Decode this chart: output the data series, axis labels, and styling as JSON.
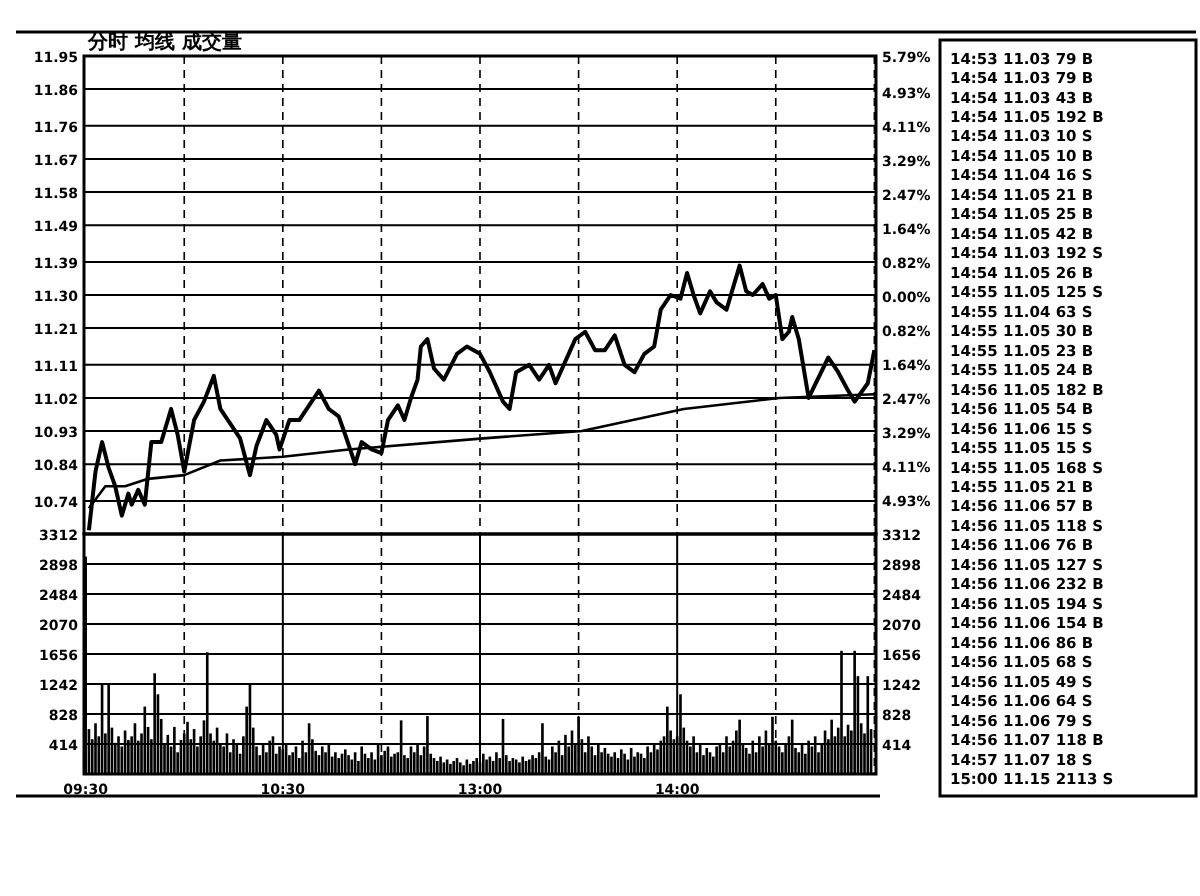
{
  "chart_data": [
    {
      "type": "line",
      "title": "分时 均线 成交量",
      "ylim": [
        10.65,
        11.95
      ],
      "y2lim": [
        -5.75,
        5.79
      ],
      "grid": true,
      "tick_labels": "y",
      "categories": [
        null,
        null,
        null,
        null,
        null,
        null,
        null,
        null,
        null,
        null,
        null,
        null,
        null,
        null,
        null,
        null,
        null,
        null,
        null,
        null,
        null,
        null,
        null,
        null,
        null,
        null,
        null,
        null,
        null,
        null,
        null,
        null,
        null,
        null,
        null,
        null,
        null,
        null,
        null,
        null,
        null,
        null,
        null,
        null,
        null,
        null,
        null,
        null,
        null,
        null,
        null,
        null,
        null,
        null,
        null,
        null,
        null,
        null,
        null,
        null,
        null,
        null,
        null,
        null,
        null,
        null,
        null,
        null,
        null,
        null,
        null,
        null,
        null,
        null,
        null,
        null,
        null,
        null,
        null,
        null,
        null,
        null,
        null,
        null,
        null,
        null,
        null,
        null,
        null,
        null,
        null,
        null,
        null,
        null,
        null,
        null,
        null,
        null,
        null,
        null,
        null,
        null,
        null,
        null,
        null,
        null,
        null,
        null,
        null,
        null,
        null,
        null,
        null,
        null,
        null,
        null,
        null,
        null,
        null,
        null,
        null,
        null,
        null,
        null,
        null,
        null,
        null,
        null,
        null,
        null,
        null,
        null,
        null,
        null,
        null,
        null,
        null,
        null,
        null,
        null,
        null,
        null,
        null,
        null,
        null,
        null,
        null,
        null,
        null,
        null,
        null,
        null,
        null,
        null,
        null,
        null,
        null,
        null,
        null,
        null,
        null,
        null,
        null,
        null,
        null,
        null,
        null,
        null,
        null,
        null,
        null,
        null,
        null,
        null,
        null,
        null,
        null,
        null,
        null,
        null,
        null,
        null,
        null,
        null,
        null,
        null,
        null,
        null,
        null,
        null,
        null,
        null,
        null,
        null,
        null,
        null,
        null,
        null,
        null,
        null,
        null,
        null,
        null,
        null,
        null,
        null,
        null,
        null,
        null,
        null,
        null,
        null,
        null,
        null,
        null,
        null,
        null,
        null,
        null,
        null,
        null,
        null,
        null,
        null,
        null,
        null,
        null,
        null,
        null,
        null,
        null,
        null,
        null,
        null,
        null,
        null,
        null,
        null,
        null,
        null,
        null
      ],
      "yticks": [
        11.95,
        11.86,
        11.76,
        11.67,
        11.58,
        11.49,
        11.39,
        {
          "value": 11.3,
          "label": "11.30"
        },
        11.21,
        11.11,
        11.02,
        10.93,
        10.84,
        10.74
      ],
      "y2ticks": [
        {
          "value": 5.79,
          "label": "5.79%"
        },
        {
          "value": 4.93,
          "label": "4.93%"
        },
        {
          "value": 4.11,
          "label": "4.11%"
        },
        {
          "value": 3.29,
          "label": "3.29%"
        },
        {
          "value": 2.47,
          "label": "2.47%"
        },
        {
          "value": 1.64,
          "label": "1.64%"
        },
        {
          "value": 0.82,
          "label": "0.82%"
        },
        {
          "value": 0,
          "label": "0.00%"
        },
        {
          "value": -0.82,
          "label": "0.82%"
        },
        {
          "value": -1.64,
          "label": "1.64%"
        },
        {
          "value": -2.47,
          "label": "2.47%"
        },
        {
          "value": -3.29,
          "label": "3.29%"
        },
        {
          "value": -4.11,
          "label": "4.11%"
        },
        {
          "value": -4.93,
          "label": "4.93%"
        }
      ],
      "series": [
        {
          "color": "#000000",
          "values": [
            null,
            10.66,
            null,
            10.82,
            null,
            10.9,
            null,
            10.83,
            null,
            10.78,
            null,
            10.7,
            null,
            10.76,
            10.73,
            null,
            10.77,
            null,
            10.73,
            null,
            10.9,
            null,
            null,
            10.9,
            null,
            null,
            10.99,
            null,
            10.92,
            null,
            10.82,
            null,
            null,
            10.96,
            null,
            null,
            11.01,
            null,
            null,
            11.08,
            null,
            10.99,
            null,
            null,
            10.95,
            null,
            null,
            10.91,
            null,
            null,
            10.81,
            null,
            10.89,
            null,
            null,
            10.96,
            null,
            null,
            10.92,
            10.88,
            null,
            null,
            10.96,
            null,
            null,
            10.96,
            null,
            null,
            11.0,
            null,
            null,
            11.04,
            null,
            null,
            10.99,
            null,
            null,
            10.97,
            null,
            10.92,
            null,
            null,
            10.84,
            null,
            10.9,
            null,
            null,
            10.88,
            null,
            null,
            10.87,
            null,
            10.96,
            null,
            null,
            11.0,
            null,
            10.96,
            null,
            11.02,
            null,
            11.07,
            11.16,
            null,
            11.18,
            null,
            11.1,
            null,
            null,
            11.07,
            null,
            null,
            null,
            11.14,
            null,
            null,
            11.16,
            null,
            null,
            null,
            11.14,
            null,
            null,
            11.09,
            null,
            null,
            null,
            11.01,
            null,
            10.99,
            null,
            11.09,
            null,
            null,
            null,
            11.11,
            null,
            null,
            11.07,
            null,
            null,
            11.11,
            null,
            11.06,
            null,
            null,
            11.12,
            null,
            null,
            11.18,
            null,
            null,
            11.2,
            null,
            null,
            11.15,
            null,
            null,
            11.15,
            null,
            null,
            11.19,
            null,
            null,
            11.11,
            null,
            null,
            11.09,
            null,
            null,
            11.14,
            null,
            null,
            11.16,
            null,
            11.26,
            null,
            null,
            11.3,
            null,
            null,
            11.29,
            null,
            11.36,
            null,
            11.3,
            null,
            11.25,
            null,
            null,
            11.31,
            null,
            11.28,
            null,
            null,
            11.26,
            null,
            null,
            null,
            11.38,
            null,
            11.31,
            null,
            11.3,
            null,
            null,
            11.33,
            null,
            11.29,
            null,
            11.3,
            null,
            11.18,
            null,
            11.2,
            11.24,
            null,
            11.18,
            null,
            null,
            11.02,
            null,
            null,
            null,
            null,
            null,
            11.13,
            null,
            null,
            11.09,
            null,
            null,
            11.04,
            null,
            11.01,
            null,
            null,
            null,
            11.06,
            null,
            11.15
          ]
        },
        {
          "color": "#000000",
          "values": [
            null,
            10.72,
            null,
            null,
            null,
            null,
            10.78,
            null,
            null,
            null,
            null,
            null,
            10.78,
            null,
            null,
            null,
            null,
            null,
            null,
            10.8,
            null,
            null,
            null,
            null,
            null,
            null,
            null,
            null,
            null,
            null,
            10.81,
            null,
            null,
            null,
            null,
            null,
            null,
            null,
            null,
            null,
            null,
            10.85,
            null,
            null,
            null,
            null,
            null,
            null,
            null,
            null,
            null,
            null,
            null,
            null,
            null,
            null,
            null,
            null,
            null,
            null,
            10.86,
            null,
            null,
            null,
            null,
            null,
            null,
            null,
            null,
            null,
            null,
            null,
            null,
            null,
            null,
            null,
            null,
            null,
            null,
            null,
            10.88,
            null,
            null,
            null,
            null,
            null,
            null,
            null,
            null,
            null,
            null,
            null,
            null,
            null,
            null,
            null,
            null,
            null,
            null,
            null,
            null,
            null,
            null,
            null,
            null,
            null,
            null,
            null,
            null,
            null,
            null,
            null,
            null,
            null,
            null,
            null,
            null,
            null,
            null,
            null,
            null,
            10.91,
            null,
            null,
            null,
            null,
            null,
            null,
            null,
            null,
            null,
            null,
            null,
            null,
            null,
            null,
            null,
            null,
            null,
            null,
            null,
            null,
            null,
            null,
            null,
            null,
            null,
            null,
            null,
            null,
            null,
            10.93,
            null,
            null,
            null,
            null,
            null,
            null,
            null,
            null,
            null,
            null,
            null,
            null,
            null,
            null,
            null,
            null,
            null,
            null,
            null,
            null,
            null,
            null,
            null,
            null,
            null,
            null,
            null,
            null,
            null,
            null,
            10.99,
            null,
            null,
            null,
            null,
            null,
            null,
            null,
            null,
            null,
            null,
            null,
            null,
            null,
            null,
            null,
            null,
            null,
            null,
            null,
            null,
            null,
            null,
            null,
            null,
            null,
            null,
            null,
            null,
            11.02,
            null,
            null,
            null,
            null,
            null,
            null,
            null,
            null,
            null,
            null,
            null,
            null,
            null,
            null,
            null,
            null,
            null,
            null,
            null,
            null,
            null,
            null,
            null,
            null,
            null,
            null,
            null,
            null,
            11.03
          ]
        }
      ]
    },
    {
      "type": "bar",
      "ylim": [
        0,
        3312
      ],
      "y2lim": [
        0,
        3312
      ],
      "grid": true,
      "categories": [
        "09:30",
        null,
        null,
        null,
        null,
        null,
        null,
        null,
        null,
        null,
        null,
        null,
        null,
        null,
        null,
        null,
        null,
        null,
        null,
        null,
        null,
        null,
        null,
        null,
        null,
        null,
        null,
        null,
        null,
        null,
        null,
        null,
        null,
        null,
        null,
        null,
        null,
        null,
        null,
        null,
        null,
        null,
        null,
        null,
        null,
        null,
        null,
        null,
        null,
        null,
        null,
        null,
        null,
        null,
        null,
        null,
        null,
        null,
        null,
        null,
        "10:30",
        null,
        null,
        null,
        null,
        null,
        null,
        null,
        null,
        null,
        null,
        null,
        null,
        null,
        null,
        null,
        null,
        null,
        null,
        null,
        null,
        null,
        null,
        null,
        null,
        null,
        null,
        null,
        null,
        null,
        null,
        null,
        null,
        null,
        null,
        null,
        null,
        null,
        null,
        null,
        null,
        null,
        null,
        null,
        null,
        null,
        null,
        null,
        null,
        null,
        null,
        null,
        null,
        null,
        null,
        null,
        null,
        null,
        null,
        null,
        "13:00",
        null,
        null,
        null,
        null,
        null,
        null,
        null,
        null,
        null,
        null,
        null,
        null,
        null,
        null,
        null,
        null,
        null,
        null,
        null,
        null,
        null,
        null,
        null,
        null,
        null,
        null,
        null,
        null,
        null,
        null,
        null,
        null,
        null,
        null,
        null,
        null,
        null,
        null,
        null,
        null,
        null,
        null,
        null,
        null,
        null,
        null,
        null,
        null,
        null,
        null,
        null,
        null,
        null,
        null,
        null,
        null,
        null,
        null,
        null,
        "14:00",
        null,
        null,
        null,
        null,
        null,
        null,
        null,
        null,
        null,
        null,
        null,
        null,
        null,
        null,
        null,
        null,
        null,
        null,
        null,
        null,
        null,
        null,
        null,
        null,
        null,
        null,
        null,
        null,
        null,
        null,
        null,
        null,
        null,
        null,
        null,
        null,
        null,
        null,
        null,
        null,
        null,
        null,
        null,
        null,
        null,
        null,
        null,
        null,
        null,
        null,
        null,
        null,
        null,
        null,
        null,
        null,
        null,
        null,
        null,
        null
      ],
      "yticks": [
        3312,
        2898,
        2484,
        2070,
        1656,
        1242,
        828,
        414
      ],
      "y2ticks": [
        3312,
        2898,
        2484,
        2070,
        1656,
        1242,
        828,
        414
      ],
      "series": [
        {
          "color": "#000000",
          "values": [
            3000,
            620,
            480,
            700,
            520,
            1250,
            560,
            1240,
            640,
            430,
            520,
            380,
            600,
            470,
            520,
            700,
            460,
            560,
            930,
            650,
            480,
            1390,
            1100,
            760,
            420,
            540,
            380,
            650,
            300,
            470,
            560,
            720,
            480,
            620,
            380,
            520,
            740,
            1680,
            560,
            460,
            640,
            420,
            380,
            560,
            300,
            480,
            420,
            280,
            520,
            930,
            1250,
            640,
            380,
            260,
            420,
            300,
            460,
            520,
            280,
            380,
            340,
            420,
            260,
            300,
            380,
            220,
            460,
            300,
            700,
            480,
            320,
            260,
            380,
            300,
            420,
            240,
            300,
            220,
            280,
            340,
            260,
            200,
            300,
            180,
            380,
            280,
            220,
            300,
            200,
            420,
            260,
            320,
            380,
            240,
            280,
            300,
            740,
            260,
            220,
            380,
            300,
            420,
            260,
            380,
            800,
            280,
            220,
            180,
            240,
            160,
            200,
            140,
            180,
            220,
            160,
            120,
            200,
            140,
            180,
            220,
            160,
            280,
            200,
            240,
            180,
            300,
            220,
            760,
            260,
            180,
            220,
            200,
            160,
            240,
            180,
            200,
            260,
            220,
            300,
            700,
            240,
            200,
            380,
            300,
            460,
            260,
            540,
            380,
            600,
            420,
            790,
            480,
            300,
            520,
            380,
            260,
            420,
            300,
            360,
            280,
            240,
            300,
            220,
            340,
            280,
            200,
            360,
            240,
            300,
            280,
            220,
            380,
            300,
            420,
            340,
            460,
            520,
            930,
            600,
            480,
            520,
            1100,
            640,
            460,
            380,
            520,
            300,
            420,
            260,
            360,
            300,
            240,
            380,
            420,
            300,
            520,
            380,
            460,
            600,
            750,
            420,
            360,
            280,
            460,
            300,
            520,
            380,
            600,
            420,
            790,
            460,
            380,
            300,
            420,
            520,
            750,
            360,
            300,
            420,
            280,
            460,
            380,
            520,
            300,
            420,
            600,
            480,
            750,
            520,
            640,
            1700,
            520,
            680,
            600,
            1700,
            1350,
            700,
            560,
            1350,
            620,
            null
          ]
        }
      ]
    },
    {
      "type": "other",
      "annotations": [
        "14:53 11.03 79 B",
        "14:54 11.03 79 B",
        "14:54 11.03 43 B",
        "14:54 11.05 192 B",
        "14:54 11.03 10 S",
        "14:54 11.05 10 B",
        "14:54 11.04 16 S",
        "14:54 11.05 21 B",
        "14:54 11.05 25 B",
        "14:54 11.05 42 B",
        "14:54 11.03 192 S",
        "14:54 11.05 26 B",
        "14:55 11.05 125 S",
        "14:55 11.04 63 S",
        "14:55 11.05 30 B",
        "14:55 11.05 23 B",
        "14:55 11.05 24 B",
        "14:56 11.05 182 B",
        "14:56 11.05 54 B",
        "14:56 11.06 15 S",
        "14:55 11.05 15 S",
        "14:55 11.05 168 S",
        "14:55 11.05 21 B",
        "14:56 11.06 57 B",
        "14:56 11.05 118 S",
        "14:56 11.06 76 B",
        "14:56 11.05 127 S",
        "14:56 11.06 232 B",
        "14:56 11.05 194 S",
        "14:56 11.06 154 B",
        "14:56 11.06 86 B",
        "14:56 11.05 68 S",
        "14:56 11.05 49 S",
        "14:56 11.06 64 S",
        "14:56 11.06 79 S",
        "14:56 11.07 118 B",
        "14:57 11.07 18 S",
        "15:00 11.15 2113 S"
      ]
    }
  ]
}
